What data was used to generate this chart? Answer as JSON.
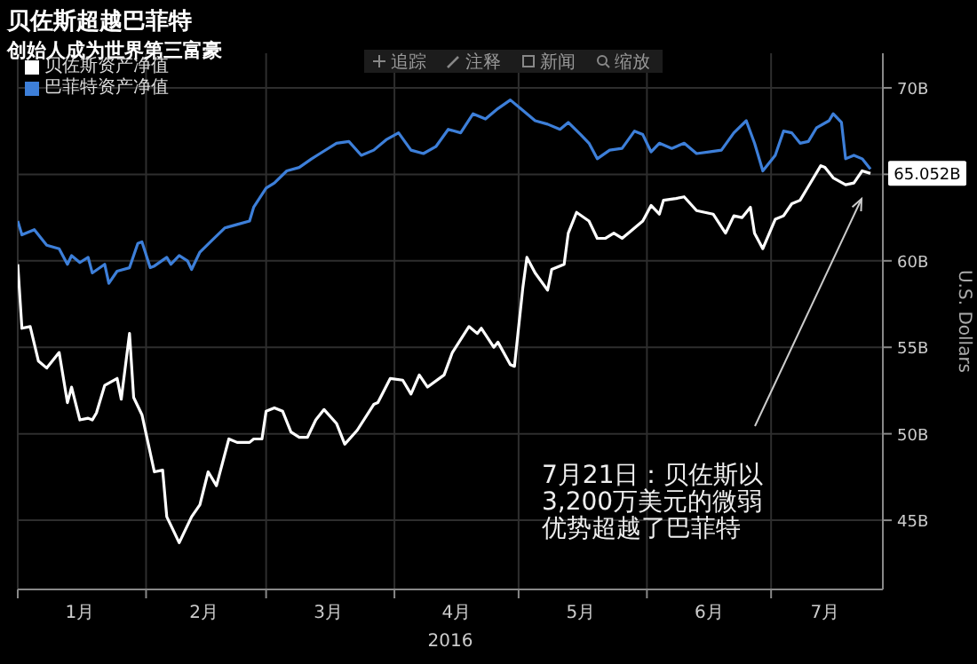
{
  "chart_data": {
    "type": "line",
    "title": "贝佐斯超越巴菲特",
    "subtitle": "创始人成为世界第三富豪",
    "xlabel": "2016",
    "ylabel": "U.S. Dollars",
    "annotations": [
      "追踪",
      "注释",
      "新闻",
      "缩放",
      "7月21日：贝佐斯以3,200万美元的微弱优势超越了巴菲特"
    ],
    "xlim": [
      "2016-01-01",
      "2016-07-28"
    ],
    "xticks": [
      {
        "value": "2016-01-01",
        "label": null
      },
      {
        "value": "2016-01-16",
        "label": "1月"
      },
      {
        "value": "2016-02-01",
        "label": null
      },
      {
        "value": "2016-02-15",
        "label": "2月"
      },
      {
        "value": "2016-03-01",
        "label": null
      },
      {
        "value": "2016-03-16",
        "label": "3月"
      },
      {
        "value": "2016-04-01",
        "label": null
      },
      {
        "value": "2016-04-16",
        "label": "4月"
      },
      {
        "value": "2016-05-01",
        "label": null
      },
      {
        "value": "2016-05-16",
        "label": "5月"
      },
      {
        "value": "2016-06-01",
        "label": null
      },
      {
        "value": "2016-06-16",
        "label": "6月"
      },
      {
        "value": "2016-07-01",
        "label": null
      },
      {
        "value": "2016-07-14",
        "label": "7月"
      }
    ],
    "ylim": [
      41,
      72
    ],
    "yticks": [
      {
        "value": 45,
        "label": "45B"
      },
      {
        "value": 50,
        "label": "50B"
      },
      {
        "value": 55,
        "label": "55B"
      },
      {
        "value": 60,
        "label": "60B"
      },
      {
        "value": 65,
        "label": null
      },
      {
        "value": 70,
        "label": "70B"
      }
    ],
    "grid": true,
    "legend": "top left",
    "series": [
      {
        "name": "贝佐斯资产净值",
        "color": "#ffffff",
        "x": [
          "2016-01-01",
          "2016-01-02",
          "2016-01-04",
          "2016-01-06",
          "2016-01-08",
          "2016-01-11",
          "2016-01-13",
          "2016-01-14",
          "2016-01-16",
          "2016-01-18",
          "2016-01-19",
          "2016-01-20",
          "2016-01-22",
          "2016-01-25",
          "2016-01-26",
          "2016-01-28",
          "2016-01-29",
          "2016-01-31",
          "2016-02-03",
          "2016-02-05",
          "2016-02-06",
          "2016-02-09",
          "2016-02-12",
          "2016-02-14",
          "2016-02-16",
          "2016-02-18",
          "2016-02-21",
          "2016-02-23",
          "2016-02-26",
          "2016-02-27",
          "2016-02-29",
          "2016-03-01",
          "2016-03-03",
          "2016-03-05",
          "2016-03-07",
          "2016-03-09",
          "2016-03-11",
          "2016-03-13",
          "2016-03-15",
          "2016-03-18",
          "2016-03-20",
          "2016-03-23",
          "2016-03-27",
          "2016-03-28",
          "2016-03-31",
          "2016-04-03",
          "2016-04-05",
          "2016-04-07",
          "2016-04-09",
          "2016-04-13",
          "2016-04-15",
          "2016-04-19",
          "2016-04-21",
          "2016-04-22",
          "2016-04-25",
          "2016-04-26",
          "2016-04-29",
          "2016-04-30",
          "2016-05-02",
          "2016-05-03",
          "2016-05-05",
          "2016-05-08",
          "2016-05-09",
          "2016-05-12",
          "2016-05-13",
          "2016-05-15",
          "2016-05-18",
          "2016-05-20",
          "2016-05-22",
          "2016-05-24",
          "2016-05-26",
          "2016-05-28",
          "2016-05-31",
          "2016-06-02",
          "2016-06-04",
          "2016-06-05",
          "2016-06-08",
          "2016-06-10",
          "2016-06-13",
          "2016-06-15",
          "2016-06-17",
          "2016-06-20",
          "2016-06-22",
          "2016-06-24",
          "2016-06-26",
          "2016-06-27",
          "2016-06-29",
          "2016-07-02",
          "2016-07-04",
          "2016-07-06",
          "2016-07-08",
          "2016-07-10",
          "2016-07-13",
          "2016-07-14",
          "2016-07-16",
          "2016-07-19",
          "2016-07-21",
          "2016-07-23",
          "2016-07-25"
        ],
        "values": [
          59.8,
          56.1,
          56.2,
          54.2,
          53.8,
          54.7,
          51.8,
          52.7,
          50.8,
          50.9,
          50.8,
          51.2,
          52.8,
          53.2,
          52.0,
          55.8,
          52.1,
          51.1,
          47.8,
          47.9,
          45.2,
          43.7,
          45.2,
          45.9,
          47.8,
          47.0,
          49.7,
          49.5,
          49.5,
          49.7,
          49.7,
          51.3,
          51.5,
          51.3,
          50.1,
          49.8,
          49.8,
          50.8,
          51.4,
          50.6,
          49.4,
          50.2,
          51.7,
          51.8,
          53.2,
          53.1,
          52.3,
          53.4,
          52.7,
          53.4,
          54.7,
          56.2,
          55.8,
          56.1,
          55.0,
          55.3,
          54.0,
          53.9,
          58.4,
          60.2,
          59.3,
          58.3,
          59.5,
          59.8,
          61.6,
          62.8,
          62.3,
          61.3,
          61.3,
          61.6,
          61.3,
          61.7,
          62.3,
          63.2,
          62.7,
          63.5,
          63.6,
          63.7,
          62.9,
          62.8,
          62.7,
          61.6,
          62.6,
          62.5,
          63.1,
          61.6,
          60.7,
          62.4,
          62.6,
          63.3,
          63.5,
          64.3,
          65.5,
          65.4,
          64.8,
          64.4,
          64.5,
          65.2,
          65.052
        ],
        "value_labels": [
          null,
          null,
          null,
          null,
          null,
          null,
          null,
          null,
          null,
          null,
          null,
          null,
          null,
          null,
          null,
          null,
          null,
          null,
          null,
          null,
          null,
          null,
          null,
          null,
          null,
          null,
          null,
          null,
          null,
          null,
          null,
          null,
          null,
          null,
          null,
          null,
          null,
          null,
          null,
          null,
          null,
          null,
          null,
          null,
          null,
          null,
          null,
          null,
          null,
          null,
          null,
          null,
          null,
          null,
          null,
          null,
          null,
          null,
          null,
          null,
          null,
          null,
          null,
          null,
          null,
          null,
          null,
          null,
          null,
          null,
          null,
          null,
          null,
          null,
          null,
          null,
          null,
          null,
          null,
          null,
          null,
          null,
          null,
          null,
          null,
          null,
          null,
          null,
          null,
          null,
          null,
          null,
          null,
          null,
          null,
          null,
          null,
          null,
          "65.052B"
        ]
      },
      {
        "name": "巴菲特资产净值",
        "color": "#3d7fd9",
        "x": [
          "2016-01-01",
          "2016-01-02",
          "2016-01-05",
          "2016-01-08",
          "2016-01-11",
          "2016-01-13",
          "2016-01-14",
          "2016-01-16",
          "2016-01-18",
          "2016-01-19",
          "2016-01-22",
          "2016-01-23",
          "2016-01-25",
          "2016-01-28",
          "2016-01-30",
          "2016-01-31",
          "2016-02-02",
          "2016-02-03",
          "2016-02-06",
          "2016-02-07",
          "2016-02-09",
          "2016-02-11",
          "2016-02-12",
          "2016-02-14",
          "2016-02-17",
          "2016-02-20",
          "2016-02-23",
          "2016-02-26",
          "2016-02-27",
          "2016-03-01",
          "2016-03-03",
          "2016-03-06",
          "2016-03-09",
          "2016-03-12",
          "2016-03-14",
          "2016-03-18",
          "2016-03-21",
          "2016-03-24",
          "2016-03-27",
          "2016-03-30",
          "2016-04-02",
          "2016-04-05",
          "2016-04-08",
          "2016-04-11",
          "2016-04-14",
          "2016-04-17",
          "2016-04-20",
          "2016-04-23",
          "2016-04-26",
          "2016-04-29",
          "2016-05-02",
          "2016-05-05",
          "2016-05-08",
          "2016-05-11",
          "2016-05-13",
          "2016-05-16",
          "2016-05-18",
          "2016-05-20",
          "2016-05-23",
          "2016-05-26",
          "2016-05-29",
          "2016-05-31",
          "2016-06-02",
          "2016-06-04",
          "2016-06-07",
          "2016-06-10",
          "2016-06-13",
          "2016-06-16",
          "2016-06-19",
          "2016-06-22",
          "2016-06-25",
          "2016-06-27",
          "2016-06-29",
          "2016-07-02",
          "2016-07-04",
          "2016-07-06",
          "2016-07-08",
          "2016-07-10",
          "2016-07-12",
          "2016-07-15",
          "2016-07-16",
          "2016-07-18",
          "2016-07-19",
          "2016-07-21",
          "2016-07-23",
          "2016-07-25"
        ],
        "values": [
          62.3,
          61.5,
          61.8,
          60.9,
          60.7,
          59.8,
          60.3,
          59.9,
          60.2,
          59.3,
          59.8,
          58.7,
          59.4,
          59.6,
          61.0,
          61.1,
          59.6,
          59.7,
          60.2,
          59.8,
          60.3,
          60.0,
          59.5,
          60.5,
          61.2,
          61.9,
          62.1,
          62.3,
          63.1,
          64.2,
          64.5,
          65.2,
          65.4,
          65.9,
          66.2,
          66.8,
          66.9,
          66.1,
          66.4,
          67.0,
          67.4,
          66.4,
          66.2,
          66.6,
          67.6,
          67.4,
          68.5,
          68.2,
          68.8,
          69.3,
          68.7,
          68.1,
          67.9,
          67.6,
          68.0,
          67.3,
          66.8,
          65.9,
          66.4,
          66.5,
          67.5,
          67.3,
          66.3,
          66.8,
          66.5,
          66.8,
          66.2,
          66.3,
          66.4,
          67.4,
          68.1,
          66.8,
          65.2,
          66.1,
          67.5,
          67.4,
          66.8,
          66.9,
          67.7,
          68.1,
          68.5,
          68.0,
          65.9,
          66.1,
          65.9,
          65.3
        ]
      }
    ]
  }
}
